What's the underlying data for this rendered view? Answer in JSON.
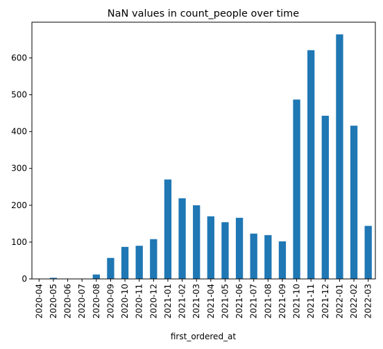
{
  "chart_data": {
    "type": "bar",
    "title": "NaN values in count_people over time",
    "xlabel": "first_ordered_at",
    "ylabel": "",
    "categories": [
      "2020-04",
      "2020-05",
      "2020-06",
      "2020-07",
      "2020-08",
      "2020-09",
      "2020-10",
      "2020-11",
      "2020-12",
      "2021-01",
      "2021-02",
      "2021-03",
      "2021-04",
      "2021-05",
      "2021-06",
      "2021-07",
      "2021-08",
      "2021-09",
      "2021-10",
      "2021-11",
      "2021-12",
      "2022-01",
      "2022-02",
      "2022-03"
    ],
    "values": [
      0,
      3,
      1,
      1,
      12,
      57,
      87,
      90,
      108,
      270,
      219,
      200,
      170,
      154,
      166,
      123,
      119,
      102,
      487,
      621,
      443,
      664,
      416,
      144
    ],
    "ylim": [
      0,
      697
    ],
    "yticks": [
      "0",
      "100",
      "200",
      "300",
      "400",
      "500",
      "600"
    ],
    "grid": false,
    "legend": "none",
    "bar_color": "#1f77b4"
  }
}
